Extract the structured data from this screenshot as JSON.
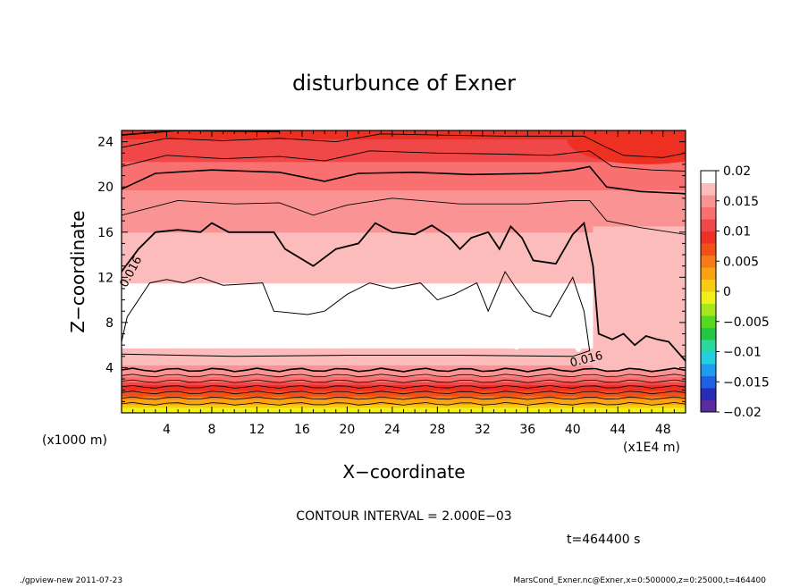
{
  "chart_data": {
    "type": "heatmap",
    "title": "disturbunce of Exner",
    "xlabel": "X−coordinate",
    "ylabel": "Z−coordinate",
    "x_unit_label": "(x1000 m)",
    "x_unit_label_right": "(x1E4 m)",
    "x_ticks": [
      "4",
      "8",
      "12",
      "16",
      "20",
      "24",
      "28",
      "32",
      "36",
      "40",
      "44",
      "48"
    ],
    "y_ticks": [
      "4",
      "8",
      "12",
      "16",
      "20",
      "24"
    ],
    "xlim": [
      0,
      50
    ],
    "ylim": [
      0,
      25
    ],
    "colorbar_ticks": [
      "0.02",
      "0.015",
      "0.01",
      "0.005",
      "0",
      "−0.005",
      "−0.01",
      "−0.015",
      "−0.02"
    ],
    "colorbar_range": [
      -0.02,
      0.02
    ],
    "colorbar_colors": [
      "#5a2ca0",
      "#2a2ab8",
      "#1f60e6",
      "#1f9cf0",
      "#22d0e0",
      "#2ad8a0",
      "#22c840",
      "#54d820",
      "#a8e61c",
      "#f0f018",
      "#f8cc10",
      "#f8a410",
      "#f87a16",
      "#f25018",
      "#ee3022",
      "#f04848",
      "#f87070",
      "#fa9494",
      "#fcbcbc",
      "#ffffff"
    ],
    "contour_interval": "CONTOUR INTERVAL = 2.000E−03",
    "contour_labels": [
      "0.016",
      "0.016"
    ],
    "field_profile": {
      "z": [
        0,
        0.8,
        1.6,
        2.4,
        3.0,
        3.6,
        4.2,
        5.0,
        5.8,
        7.0,
        8.5,
        10.0,
        11.5,
        13.0,
        14.5,
        16.0,
        17.5,
        19.0,
        20.5,
        22.0,
        23.0,
        24.0,
        25.0
      ],
      "value": [
        -0.002,
        0.002,
        0.006,
        0.01,
        0.013,
        0.015,
        0.016,
        0.017,
        0.018,
        0.0195,
        0.0205,
        0.0195,
        0.018,
        0.0172,
        0.0165,
        0.016,
        0.0152,
        0.0145,
        0.0135,
        0.0122,
        0.0112,
        0.0102,
        0.009
      ]
    }
  },
  "time_label": "t=464400 s",
  "footer": {
    "left": "./gpview-new   2011-07-23",
    "right": "MarsCond_Exner.nc@Exner,x=0:500000,z=0:25000,t=464400"
  }
}
